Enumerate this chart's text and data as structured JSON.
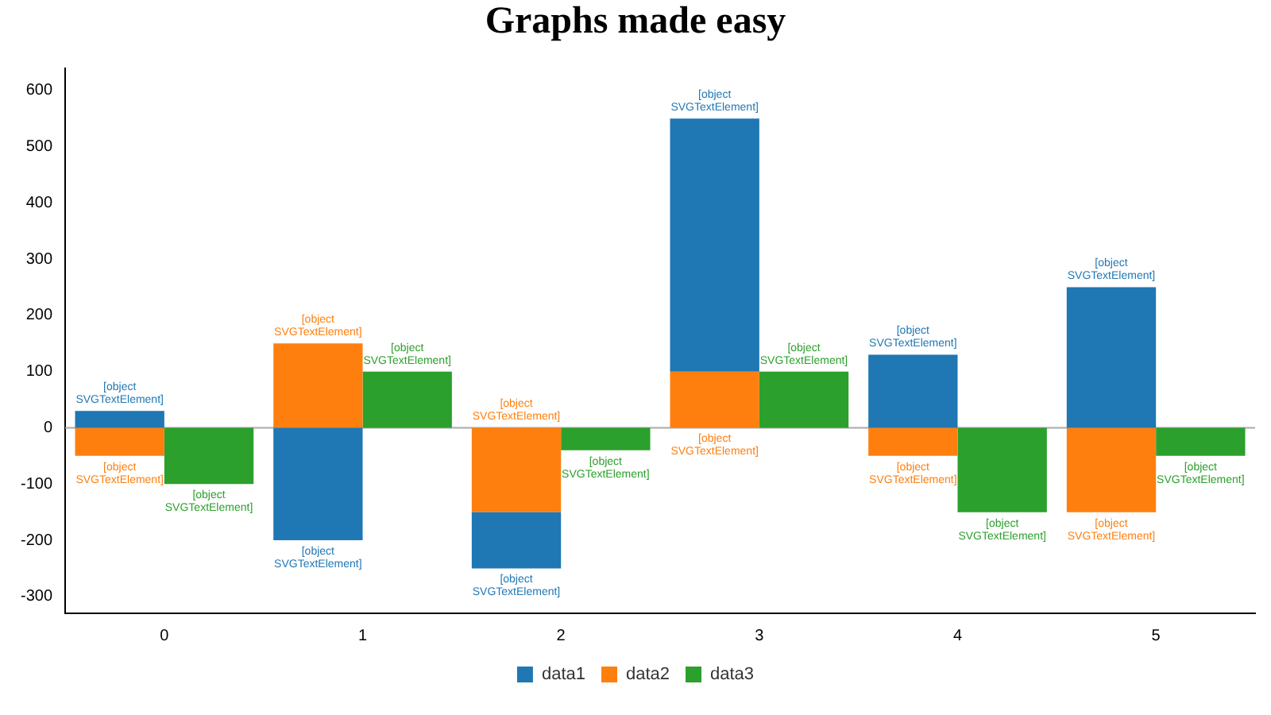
{
  "chart_data": {
    "type": "bar",
    "title": "Graphs made easy",
    "categories": [
      "0",
      "1",
      "2",
      "3",
      "4",
      "5"
    ],
    "series": [
      {
        "name": "data1",
        "color": "#1f77b4",
        "base": [
          0,
          0,
          -150,
          100,
          0,
          0
        ],
        "values": [
          30,
          -200,
          -100,
          450,
          130,
          250
        ],
        "value_labels": [
          "[object SVGTextElement]",
          "[object SVGTextElement]",
          "[object SVGTextElement]",
          "[object SVGTextElement]",
          "[object SVGTextElement]",
          "[object SVGTextElement]"
        ]
      },
      {
        "name": "data2",
        "color": "#ff7f0e",
        "base": [
          0,
          0,
          0,
          0,
          0,
          0
        ],
        "values": [
          -50,
          150,
          -150,
          100,
          -50,
          -150
        ],
        "value_labels": [
          "[object SVGTextElement]",
          "[object SVGTextElement]",
          "[object SVGTextElement]",
          "[object SVGTextElement]",
          "[object SVGTextElement]",
          "[object SVGTextElement]"
        ]
      },
      {
        "name": "data3",
        "color": "#2ca02c",
        "values": [
          -100,
          100,
          -40,
          100,
          -150,
          -50
        ],
        "value_labels": [
          "[object SVGTextElement]",
          "[object SVGTextElement]",
          "[object SVGTextElement]",
          "[object SVGTextElement]",
          "[object SVGTextElement]",
          "[object SVGTextElement]"
        ]
      }
    ],
    "ylim": [
      -330,
      640
    ],
    "yticks": [
      -300,
      -200,
      -100,
      0,
      100,
      200,
      300,
      400,
      500,
      600
    ],
    "legend": "bottom",
    "ref_lines": [
      {
        "axis": "y",
        "value": 0,
        "color": "#aaaaaa"
      }
    ]
  }
}
